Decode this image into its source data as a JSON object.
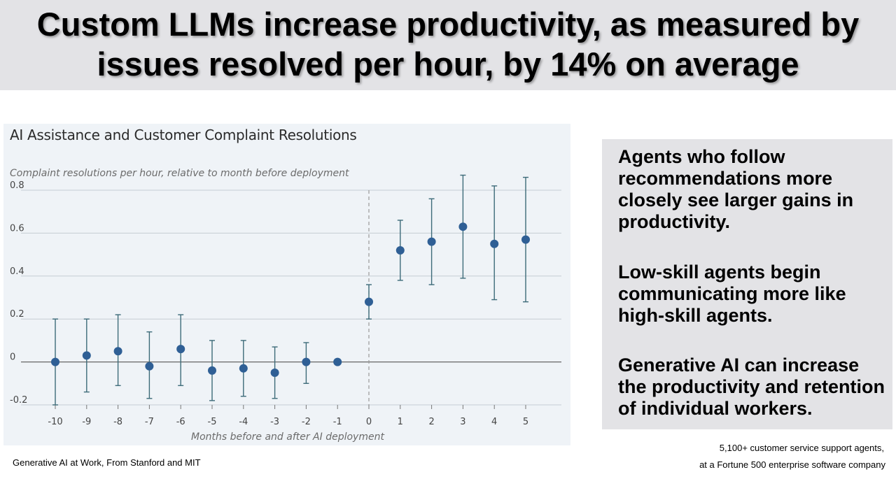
{
  "headline": {
    "line1": "Custom LLMs increase productivity, as measured by",
    "line2": "issues resolved per hour, by 14% on average"
  },
  "chart_data": {
    "type": "scatter",
    "title": "AI Assistance and Customer Complaint Resolutions",
    "subtitle": "Complaint resolutions per hour, relative to month before deployment",
    "xlabel": "Months before and after AI deployment",
    "ylabel": "",
    "x": [
      -10,
      -9,
      -8,
      -7,
      -6,
      -5,
      -4,
      -3,
      -2,
      -1,
      0,
      1,
      2,
      3,
      4,
      5
    ],
    "y": [
      0.0,
      0.03,
      0.05,
      -0.02,
      0.06,
      -0.04,
      -0.03,
      -0.05,
      0.0,
      0.0,
      0.28,
      0.52,
      0.56,
      0.63,
      0.55,
      0.57
    ],
    "ci_low": [
      -0.2,
      -0.14,
      -0.11,
      -0.17,
      -0.11,
      -0.18,
      -0.16,
      -0.17,
      -0.1,
      0.0,
      0.2,
      0.38,
      0.36,
      0.39,
      0.29,
      0.28
    ],
    "ci_high": [
      0.2,
      0.2,
      0.22,
      0.14,
      0.22,
      0.1,
      0.1,
      0.07,
      0.09,
      0.0,
      0.36,
      0.66,
      0.76,
      0.87,
      0.82,
      0.86
    ],
    "ylim": [
      -0.2,
      0.8
    ],
    "yticks": [
      -0.2,
      0,
      0.2,
      0.4,
      0.6,
      0.8
    ],
    "ytick_labels": [
      "-0.2",
      "0",
      "0.2",
      "0.4",
      "0.6",
      "0.8"
    ],
    "xticks": [
      -10,
      -9,
      -8,
      -7,
      -6,
      -5,
      -4,
      -3,
      -2,
      -1,
      0,
      1,
      2,
      3,
      4,
      5
    ],
    "xtick_labels": [
      "-10",
      "-9",
      "-8",
      "-7",
      "-6",
      "-5",
      "-4",
      "-3",
      "-2",
      "-1",
      "0",
      "1",
      "2",
      "3",
      "4",
      "5"
    ],
    "deployment_line_x": 0,
    "grid": true,
    "colors": {
      "point": "#2f5f95",
      "errorbar": "#3d6b79",
      "grid": "#c6cdd4",
      "zero": "#666666"
    }
  },
  "side_points": [
    "Agents who follow recommendations more closely see larger gains in productivity.",
    "Low-skill agents begin communicating more like high-skill agents.",
    "Generative AI can increase the productivity and retention of individual workers."
  ],
  "source": "Generative AI at Work, From Stanford and MIT",
  "note_line1": "5,100+ customer service support agents,",
  "note_line2": "at a Fortune 500 enterprise software company"
}
